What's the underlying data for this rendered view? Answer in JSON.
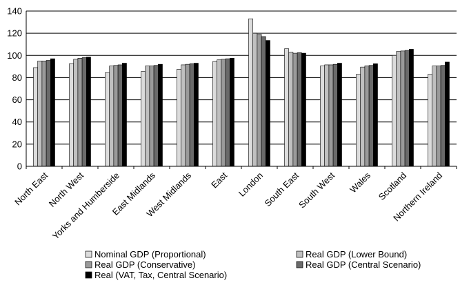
{
  "chart_data": {
    "type": "bar",
    "title": "",
    "xlabel": "",
    "ylabel": "",
    "ylim": [
      0,
      140
    ],
    "yticks": [
      "0",
      "20",
      "40",
      "60",
      "80",
      "100",
      "120",
      "140"
    ],
    "grid": true,
    "legend_placement": "bottom",
    "categories": [
      "North East",
      "North West",
      "Yorks and Humberside",
      "East Midlands",
      "West Midlands",
      "East",
      "London",
      "South East",
      "South West",
      "Wales",
      "Scotland",
      "Northern Ireland"
    ],
    "series": [
      {
        "name": "Nominal GDP (Proportional)",
        "color": "#dcdcdc",
        "values": [
          89,
          92.5,
          84.5,
          85.5,
          87.5,
          94.5,
          133,
          106,
          90.5,
          83,
          100,
          83
        ]
      },
      {
        "name": "Real GDP (Lower Bound)",
        "color": "#c0c0c0",
        "values": [
          95,
          96.5,
          90.5,
          90.5,
          91.5,
          96,
          120,
          103,
          91.5,
          89.5,
          103.5,
          90.5
        ]
      },
      {
        "name": "Real GDP (Conservative)",
        "color": "#9a9a9a",
        "values": [
          95,
          97.5,
          91,
          90.5,
          92,
          96.5,
          119,
          102,
          91.5,
          90.5,
          104,
          90.5
        ]
      },
      {
        "name": "Real GDP (Central Scenario)",
        "color": "#6a6a6a",
        "values": [
          95.5,
          98,
          91.5,
          91,
          92.5,
          97,
          117,
          102.5,
          92,
          91,
          104.5,
          91
        ]
      },
      {
        "name": "Real (VAT, Tax, Central Scenario)",
        "color": "#000000",
        "values": [
          97,
          98.5,
          93,
          92,
          93,
          97.5,
          113.5,
          102,
          93,
          92.5,
          105.5,
          94
        ]
      }
    ]
  }
}
